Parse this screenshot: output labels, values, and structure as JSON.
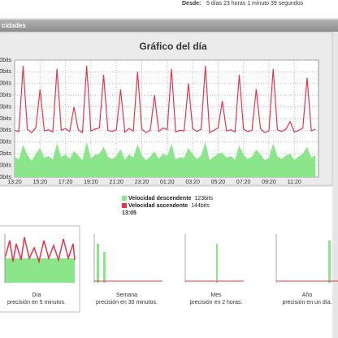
{
  "header": {
    "label": "Desde:",
    "value": "5 días 23 horas 1 minuto 39 segundos"
  },
  "section": {
    "title": "cidades"
  },
  "chart_data": {
    "type": "line",
    "title": "Gráfico del día",
    "categories": [
      "13:20",
      null,
      null,
      null,
      null,
      null,
      "15:20",
      null,
      null,
      null,
      null,
      null,
      "17:20",
      null,
      null,
      null,
      null,
      null,
      "19:20",
      null,
      null,
      null,
      null,
      null,
      "21:20",
      null,
      null,
      null,
      null,
      null,
      "23:20",
      null,
      null,
      null,
      null,
      null,
      "01:20",
      null,
      null,
      null,
      null,
      null,
      "03:20",
      null,
      null,
      null,
      null,
      null,
      "05:20",
      null,
      null,
      null,
      null,
      null,
      "07:20",
      null,
      null,
      null,
      null,
      null,
      "09:20",
      null,
      null,
      null,
      null,
      null,
      "11:20",
      null,
      null,
      null,
      null,
      null
    ],
    "series": [
      {
        "name": "Velocidad descendente",
        "current": "123bits",
        "color": "#8be68b",
        "fill": true,
        "values": [
          35,
          30,
          55,
          38,
          28,
          40,
          50,
          33,
          36,
          30,
          58,
          34,
          39,
          31,
          45,
          37,
          29,
          60,
          32,
          38,
          40,
          52,
          35,
          31,
          36,
          48,
          30,
          39,
          33,
          56,
          37,
          29,
          35,
          44,
          31,
          40,
          36,
          57,
          30,
          34,
          33,
          50,
          39,
          31,
          37,
          60,
          29,
          35,
          40,
          42,
          33,
          36,
          30,
          54,
          38,
          31,
          35,
          47,
          39,
          29,
          33,
          58,
          36,
          31,
          37,
          40,
          30,
          35,
          40,
          52,
          33,
          38
        ]
      },
      {
        "name": "Velocidad ascendente",
        "current": "144bits",
        "color": "#e8344a",
        "fill": false,
        "values": [
          80,
          78,
          190,
          82,
          76,
          84,
          150,
          79,
          81,
          77,
          185,
          80,
          83,
          78,
          120,
          81,
          76,
          190,
          79,
          82,
          84,
          175,
          80,
          78,
          81,
          150,
          77,
          83,
          79,
          180,
          82,
          76,
          80,
          140,
          78,
          84,
          81,
          185,
          77,
          80,
          79,
          160,
          83,
          78,
          82,
          190,
          76,
          80,
          84,
          130,
          79,
          81,
          77,
          175,
          82,
          78,
          80,
          150,
          83,
          76,
          79,
          185,
          81,
          78,
          82,
          95,
          77,
          80,
          84,
          170,
          79,
          82
        ]
      }
    ],
    "time": "13:05",
    "ylim": [
      0,
      200
    ],
    "yticks": [
      {
        "value": 0,
        "label": "0bits"
      },
      {
        "value": 20,
        "label": "20bits"
      },
      {
        "value": 40,
        "label": "40bits"
      },
      {
        "value": 60,
        "label": "60bits"
      },
      {
        "value": 80,
        "label": "80bits"
      },
      {
        "value": 100,
        "label": "100bits"
      },
      {
        "value": 120,
        "label": "120bits"
      },
      {
        "value": 140,
        "label": "140bits"
      },
      {
        "value": 160,
        "label": "160bits"
      },
      {
        "value": 180,
        "label": "180bits"
      },
      {
        "value": 200,
        "label": "200bits"
      }
    ],
    "grid": true
  },
  "thumbnails": [
    {
      "title": "Día",
      "caption": "precisión en 5 minutos."
    },
    {
      "title": "Semana",
      "caption": "precisión en 30 minutos."
    },
    {
      "title": "Mes",
      "caption": "precisión en 2 horas."
    },
    {
      "title": "Año",
      "caption": "precisión en un día."
    }
  ]
}
